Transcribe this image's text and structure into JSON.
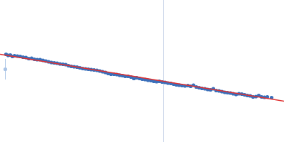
{
  "chart_data": {
    "type": "scatter",
    "tick_labels": false,
    "xlim": [
      0,
      400
    ],
    "ylim": [
      0,
      200
    ],
    "vline": 230,
    "vline_color": "#c8d4e8",
    "series": [
      {
        "type": "scatter",
        "color": "#3a6fba",
        "x": [
          8,
          11,
          14,
          17,
          20,
          24,
          28,
          32,
          36,
          40,
          44,
          48,
          52,
          56,
          60,
          64,
          68,
          72,
          76,
          80,
          84,
          88,
          92,
          96,
          100,
          104,
          108,
          112,
          116,
          120,
          124,
          128,
          132,
          136,
          140,
          144,
          148,
          152,
          156,
          160,
          164,
          168,
          172,
          176,
          180,
          184,
          188,
          192,
          196,
          200,
          204,
          208,
          212,
          216,
          220,
          224,
          228,
          232,
          236,
          240,
          244,
          248,
          252,
          256,
          260,
          264,
          268,
          272,
          276,
          280,
          284,
          288,
          292,
          296,
          300,
          304,
          308,
          312,
          316,
          320,
          324,
          328,
          332,
          336,
          340,
          344,
          348,
          352,
          356,
          360,
          364,
          368,
          372,
          376,
          382
        ],
        "values": [
          124,
          122.5,
          123,
          121,
          122,
          121.5,
          121,
          120,
          119.5,
          118,
          118.5,
          117,
          116.5,
          116.5,
          115.5,
          114.5,
          113.5,
          112.5,
          112,
          111.5,
          110.5,
          110,
          109.5,
          108,
          107,
          106.5,
          106,
          105,
          104,
          103.5,
          103,
          102.5,
          102,
          101.5,
          100.5,
          99.5,
          98.5,
          97,
          96,
          96,
          95.5,
          94.5,
          94,
          93,
          93,
          92,
          90,
          91,
          90,
          89,
          88.5,
          87.5,
          87,
          86,
          85.5,
          86,
          85,
          84.5,
          83.5,
          83,
          82,
          81,
          80.5,
          80,
          79.5,
          80,
          79,
          80.5,
          78,
          77,
          76,
          75.5,
          74.5,
          74,
          75.5,
          73,
          72.5,
          71.5,
          70.5,
          70,
          69.5,
          68.5,
          67.5,
          68.5,
          68,
          67,
          66,
          65.5,
          64,
          64.5,
          66,
          64,
          63.5,
          64,
          63
        ]
      },
      {
        "type": "line",
        "color": "#e03030",
        "x": [
          0,
          400
        ],
        "values": [
          124,
          58
        ]
      },
      {
        "type": "scatter",
        "color": "#aac4e6",
        "x": [
          7
        ],
        "values": [
          103
        ],
        "error": [
          [
            88,
            117
          ]
        ]
      }
    ]
  }
}
